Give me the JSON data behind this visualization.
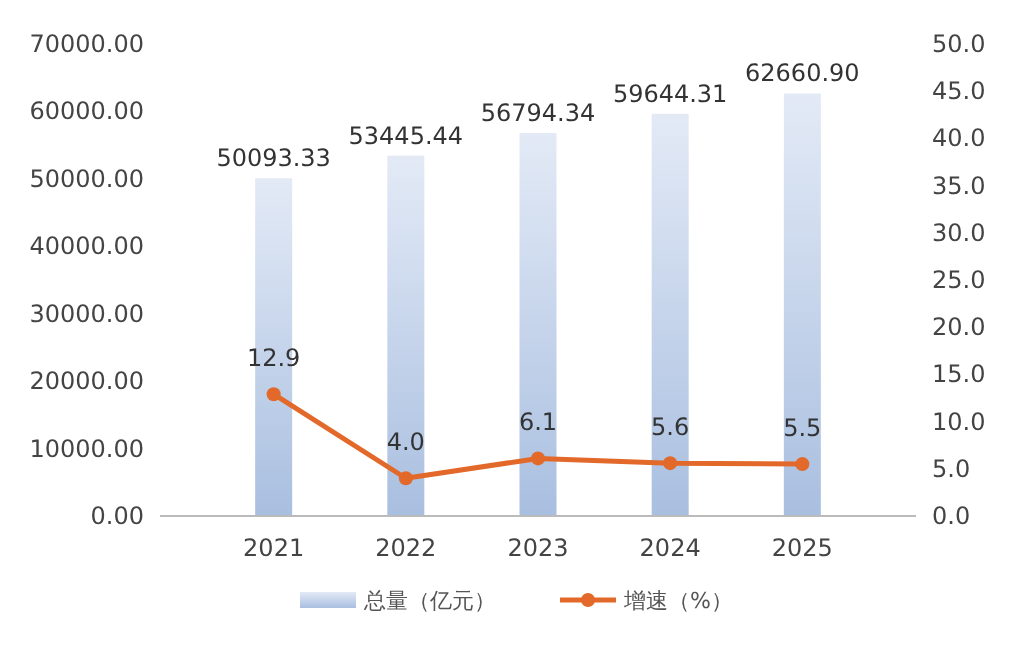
{
  "chart_data": {
    "type": "bar",
    "categories": [
      "2021",
      "2022",
      "2023",
      "2024",
      "2025"
    ],
    "series": [
      {
        "name": "总量（亿元）",
        "color": "#a9bfe0",
        "values": [
          50093.33,
          53445.44,
          56794.34,
          59644.31,
          62660.9
        ],
        "value_labels": [
          "50093.33",
          "53445.44",
          "56794.34",
          "59644.31",
          "62660.90"
        ]
      },
      {
        "name": "增速（%）",
        "type": "line",
        "axis": "y2",
        "color": "#e2692a",
        "values": [
          12.9,
          4.0,
          6.1,
          5.6,
          5.5
        ],
        "value_labels": [
          "12.9",
          "4.0",
          "6.1",
          "5.6",
          "5.5"
        ]
      }
    ],
    "ylim": [
      0,
      70000
    ],
    "yticks": [
      {
        "value": 0,
        "label": "0.00"
      },
      {
        "value": 10000,
        "label": "10000.00"
      },
      {
        "value": 20000,
        "label": "20000.00"
      },
      {
        "value": 30000,
        "label": "30000.00"
      },
      {
        "value": 40000,
        "label": "40000.00"
      },
      {
        "value": 50000,
        "label": "50000.00"
      },
      {
        "value": 60000,
        "label": "60000.00"
      },
      {
        "value": 70000,
        "label": "70000.00"
      }
    ],
    "y2lim": [
      0,
      50
    ],
    "y2ticks": [
      {
        "value": 0,
        "label": "0.0"
      },
      {
        "value": 5,
        "label": "5.0"
      },
      {
        "value": 10,
        "label": "10.0"
      },
      {
        "value": 15,
        "label": "15.0"
      },
      {
        "value": 20,
        "label": "20.0"
      },
      {
        "value": 25,
        "label": "25.0"
      },
      {
        "value": 30,
        "label": "30.0"
      },
      {
        "value": 35,
        "label": "35.0"
      },
      {
        "value": 40,
        "label": "40.0"
      },
      {
        "value": 45,
        "label": "45.0"
      },
      {
        "value": 50,
        "label": "50.0"
      }
    ],
    "marker": "circle",
    "line_style": "solid",
    "legend": "bottom",
    "grid": false
  }
}
